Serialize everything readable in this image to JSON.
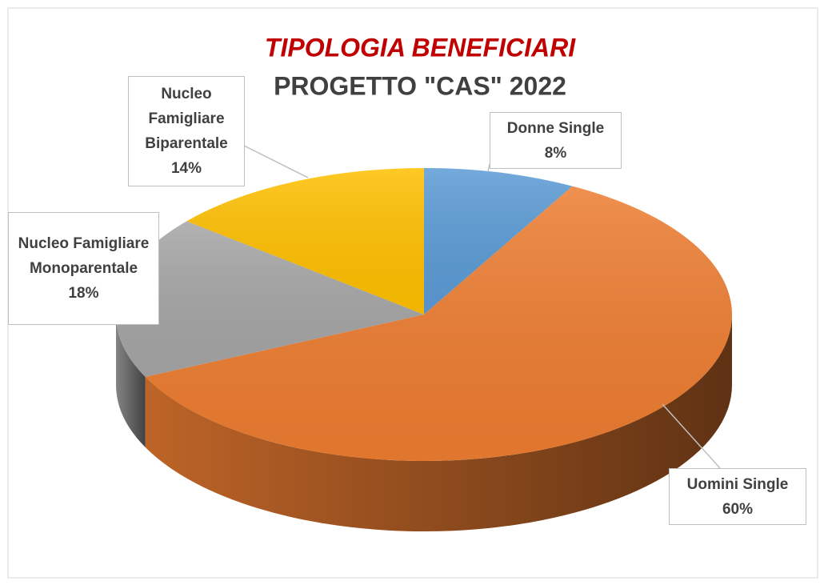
{
  "chart_data": {
    "type": "pie",
    "title": "TIPOLOGIA BENEFICIARI",
    "subtitle": "PROGETTO \"CAS\" 2022",
    "categories": [
      "Donne Single",
      "Uomini Single",
      "Nucleo Famigliare Monoparentale",
      "Nucleo Famigliare Biparentale"
    ],
    "values": [
      8,
      60,
      18,
      14
    ],
    "value_labels": [
      "8%",
      "60%",
      "18%",
      "14%"
    ],
    "colors": [
      "#5b9bd5",
      "#ed7d31",
      "#a5a5a5",
      "#ffc000"
    ]
  }
}
